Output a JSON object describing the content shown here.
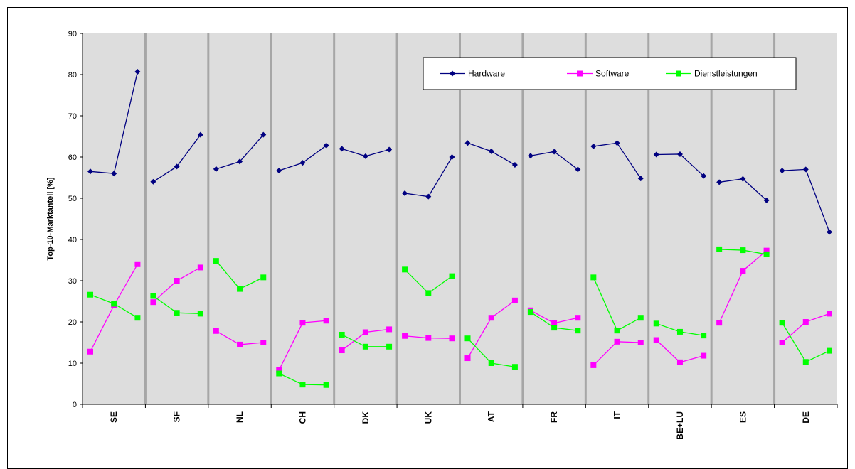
{
  "chart_data": {
    "type": "line",
    "ylabel": "Top-10-Marktanteil [%]",
    "xlabel": "",
    "ylim": [
      0,
      90
    ],
    "yticks": [
      "0",
      "10",
      "20",
      "30",
      "40",
      "50",
      "60",
      "70",
      "80",
      "90"
    ],
    "grid": true,
    "legend_position": "top-right",
    "categories": [
      "SE",
      "SF",
      "NL",
      "CH",
      "DK",
      "UK",
      "AT",
      "FR",
      "IT",
      "BE+LU",
      "ES",
      "DE"
    ],
    "points_per_category": 3,
    "series": [
      {
        "name": "Hardware",
        "color": "#000080",
        "marker": "diamond",
        "values": [
          [
            56.5,
            56,
            80.7
          ],
          [
            54,
            57.7,
            65.4
          ],
          [
            57.1,
            58.9,
            65.4
          ],
          [
            56.7,
            58.6,
            62.8
          ],
          [
            62,
            60.2,
            61.8
          ],
          [
            51.2,
            50.4,
            60
          ],
          [
            63.4,
            61.4,
            58.1
          ],
          [
            60.3,
            61.3,
            57
          ],
          [
            62.6,
            63.4,
            54.8
          ],
          [
            60.6,
            60.7,
            55.4
          ],
          [
            53.9,
            54.7,
            49.5
          ],
          [
            56.7,
            57,
            41.8
          ]
        ]
      },
      {
        "name": "Software",
        "color": "#ff00ff",
        "marker": "square",
        "values": [
          [
            12.8,
            24,
            34
          ],
          [
            24.8,
            30,
            33.2
          ],
          [
            17.8,
            14.5,
            15
          ],
          [
            8.3,
            19.8,
            20.3
          ],
          [
            13.1,
            17.5,
            18.2
          ],
          [
            16.6,
            16.1,
            16
          ],
          [
            11.2,
            21,
            25.2
          ],
          [
            22.8,
            19.7,
            21
          ],
          [
            9.5,
            15.2,
            15
          ],
          [
            15.6,
            10.2,
            11.8
          ],
          [
            19.8,
            32.4,
            37.3
          ],
          [
            15,
            20,
            22
          ]
        ]
      },
      {
        "name": "Dienstleistungen",
        "color": "#00ff00",
        "marker": "square",
        "values": [
          [
            26.6,
            24.4,
            21
          ],
          [
            26.3,
            22.2,
            22
          ],
          [
            34.8,
            28,
            30.8
          ],
          [
            7.5,
            4.8,
            4.7
          ],
          [
            16.9,
            14,
            14
          ],
          [
            32.7,
            27,
            31.1
          ],
          [
            16,
            10,
            9.1
          ],
          [
            22.4,
            18.6,
            17.9
          ],
          [
            30.8,
            17.9,
            21
          ],
          [
            19.6,
            17.6,
            16.7
          ],
          [
            37.6,
            37.4,
            36.4
          ],
          [
            19.8,
            10.3,
            13
          ]
        ]
      }
    ]
  }
}
